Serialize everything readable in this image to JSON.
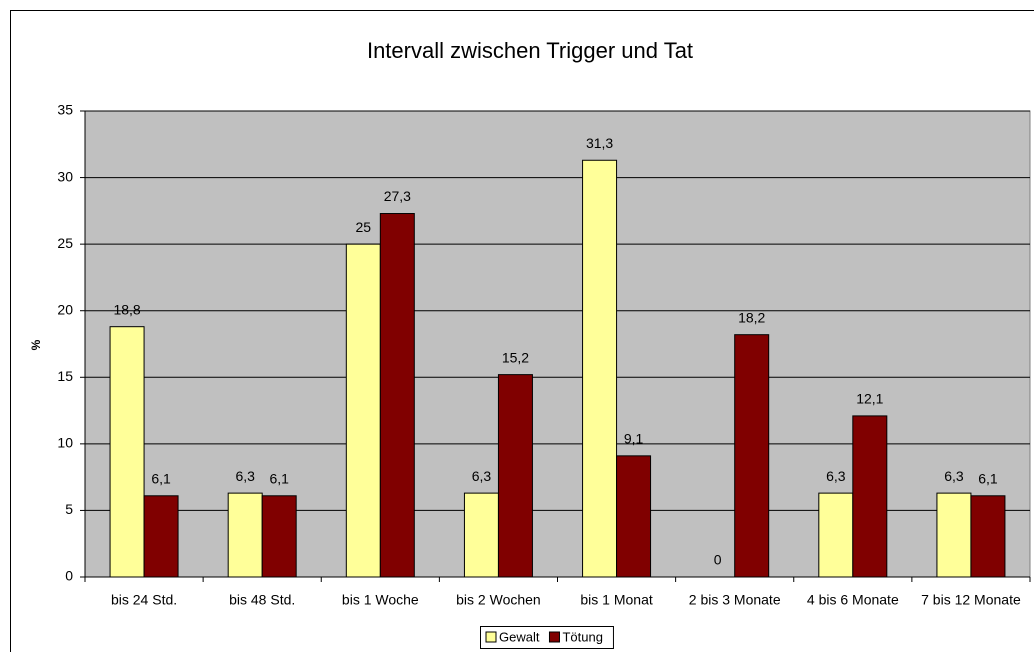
{
  "chart_data": {
    "type": "bar",
    "title": "Intervall zwischen Trigger und Tat",
    "y_label": "%",
    "categories": [
      "bis 24 Std.",
      "bis 48 Std.",
      "bis 1 Woche",
      "bis 2 Wochen",
      "bis 1 Monat",
      "2 bis 3 Monate",
      "4 bis 6 Monate",
      "7 bis 12 Monate"
    ],
    "series": [
      {
        "name": "Gewalt",
        "color": "#ffff99",
        "values": [
          18.8,
          6.3,
          25,
          6.3,
          31.3,
          0,
          6.3,
          6.3
        ],
        "value_labels": [
          "18,8",
          "6,3",
          "25",
          "6,3",
          "31,3",
          "0",
          "6,3",
          "6,3"
        ]
      },
      {
        "name": "Tötung",
        "color": "#800000",
        "values": [
          6.1,
          6.1,
          27.3,
          15.2,
          9.1,
          18.2,
          12.1,
          6.1
        ],
        "value_labels": [
          "6,1",
          "6,1",
          "27,3",
          "15,2",
          "9,1",
          "18,2",
          "12,1",
          "6,1"
        ]
      }
    ],
    "ylim": [
      0,
      35
    ],
    "yticks": [
      0,
      5,
      10,
      15,
      20,
      25,
      30,
      35
    ],
    "grid": true,
    "legend": "bottom"
  }
}
